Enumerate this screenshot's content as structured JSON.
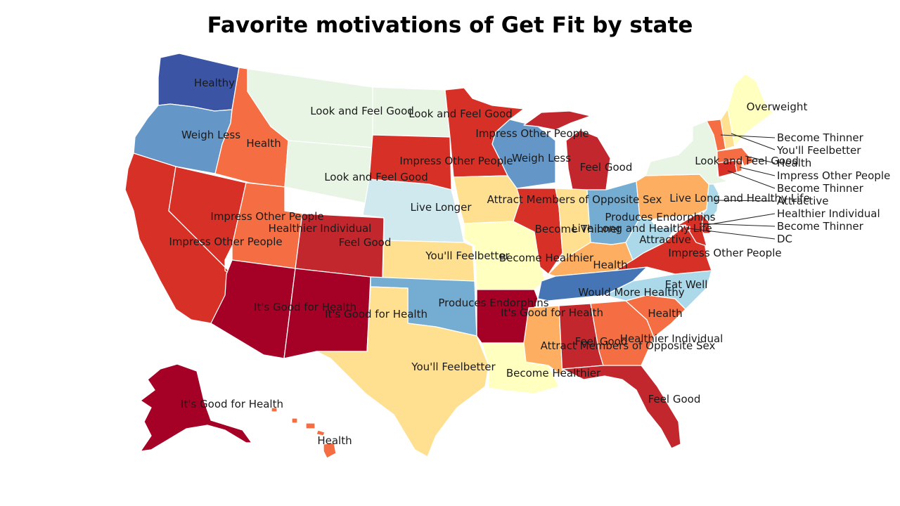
{
  "title": "Favorite motivations of Get Fit by state",
  "colors": {
    "c1": "#a50026",
    "c2": "#c1272d",
    "c3": "#d73027",
    "c4": "#f46d43",
    "c5": "#fdae61",
    "c6": "#fee090",
    "c7": "#ffffbf",
    "c8": "#e8f4e4",
    "c9": "#d0e9ef",
    "c10": "#abd9e9",
    "c11": "#74add1",
    "c12": "#6497c7",
    "c13": "#4575b4",
    "c14": "#3b54a4"
  },
  "states": [
    {
      "name": "WA",
      "motivation": "Healthy",
      "color": "c14"
    },
    {
      "name": "OR",
      "motivation": "Weigh Less",
      "color": "c12"
    },
    {
      "name": "CA",
      "motivation": "Impress Other People",
      "color": "c3"
    },
    {
      "name": "NV",
      "motivation": "Impress Other People",
      "color": "c3"
    },
    {
      "name": "ID",
      "motivation": "Health",
      "color": "c4"
    },
    {
      "name": "MT",
      "motivation": "Look and Feel Good",
      "color": "c8"
    },
    {
      "name": "WY",
      "motivation": "Look and Feel Good",
      "color": "c8"
    },
    {
      "name": "UT",
      "motivation": "Healthier Individual",
      "color": "c4"
    },
    {
      "name": "CO",
      "motivation": "Feel Good",
      "color": "c2"
    },
    {
      "name": "AZ",
      "motivation": "It's Good for Health",
      "color": "c1"
    },
    {
      "name": "NM",
      "motivation": "It's Good for Health",
      "color": "c1"
    },
    {
      "name": "ND",
      "motivation": "Look and Feel Good",
      "color": "c8"
    },
    {
      "name": "SD",
      "motivation": "Impress Other People",
      "color": "c3"
    },
    {
      "name": "NE",
      "motivation": "Live Longer",
      "color": "c9"
    },
    {
      "name": "KS",
      "motivation": "You'll Feelbetter",
      "color": "c6"
    },
    {
      "name": "OK",
      "motivation": "Produces Endorphins",
      "color": "c11"
    },
    {
      "name": "TX",
      "motivation": "You'll Feelbetter",
      "color": "c6"
    },
    {
      "name": "MN",
      "motivation": "Impress Other People",
      "color": "c3"
    },
    {
      "name": "IA",
      "motivation": "Attract Members of Opposite Sex",
      "color": "c6"
    },
    {
      "name": "MO",
      "motivation": "Become Healthier",
      "color": "c7"
    },
    {
      "name": "AR",
      "motivation": "It's Good for Health",
      "color": "c1"
    },
    {
      "name": "LA",
      "motivation": "Become Healthier",
      "color": "c7"
    },
    {
      "name": "WI",
      "motivation": "Weigh Less",
      "color": "c12"
    },
    {
      "name": "IL",
      "motivation": "Become Thinner",
      "color": "c3"
    },
    {
      "name": "MI",
      "motivation": "Feel Good",
      "color": "c2"
    },
    {
      "name": "IN",
      "motivation": "Live Long and Healthy Life",
      "color": "c6"
    },
    {
      "name": "OH",
      "motivation": "Produces Endorphins",
      "color": "c11"
    },
    {
      "name": "KY",
      "motivation": "Health",
      "color": "c5"
    },
    {
      "name": "TN",
      "motivation": "Would More Healthy",
      "color": "c13"
    },
    {
      "name": "MS",
      "motivation": "Attract Members of Opposite Sex",
      "color": "c5"
    },
    {
      "name": "AL",
      "motivation": "Feel Good",
      "color": "c2"
    },
    {
      "name": "GA",
      "motivation": "Healthier Individual",
      "color": "c4"
    },
    {
      "name": "FL",
      "motivation": "Feel Good",
      "color": "c2"
    },
    {
      "name": "SC",
      "motivation": "Health",
      "color": "c4"
    },
    {
      "name": "NC",
      "motivation": "Eat Well",
      "color": "c10"
    },
    {
      "name": "VA",
      "motivation": "Impress Other People",
      "color": "c3"
    },
    {
      "name": "WV",
      "motivation": "Attractive",
      "color": "c10"
    },
    {
      "name": "PA",
      "motivation": "Live Long and Healthy Life",
      "color": "c5"
    },
    {
      "name": "NY",
      "motivation": "Look and Feel Good",
      "color": "c8"
    },
    {
      "name": "ME",
      "motivation": "Overweight",
      "color": "c7"
    },
    {
      "name": "VT",
      "motivation": "Become Thinner",
      "color": "c4"
    },
    {
      "name": "NH",
      "motivation": "You'll Feelbetter",
      "color": "c6"
    },
    {
      "name": "MA",
      "motivation": "Health",
      "color": "c4"
    },
    {
      "name": "RI",
      "motivation": "Impress Other People",
      "color": "c4"
    },
    {
      "name": "CT",
      "motivation": "Become Thinner",
      "color": "c3"
    },
    {
      "name": "NJ",
      "motivation": "Attractive",
      "color": "c10"
    },
    {
      "name": "DE",
      "motivation": "Healthier Individual",
      "color": "c3"
    },
    {
      "name": "MD",
      "motivation": "Become Thinner",
      "color": "c3"
    },
    {
      "name": "DC",
      "motivation": "DC",
      "color": "c3"
    },
    {
      "name": "AK",
      "motivation": "It's Good for Health",
      "color": "c1"
    },
    {
      "name": "HI",
      "motivation": "Health",
      "color": "c4"
    }
  ]
}
